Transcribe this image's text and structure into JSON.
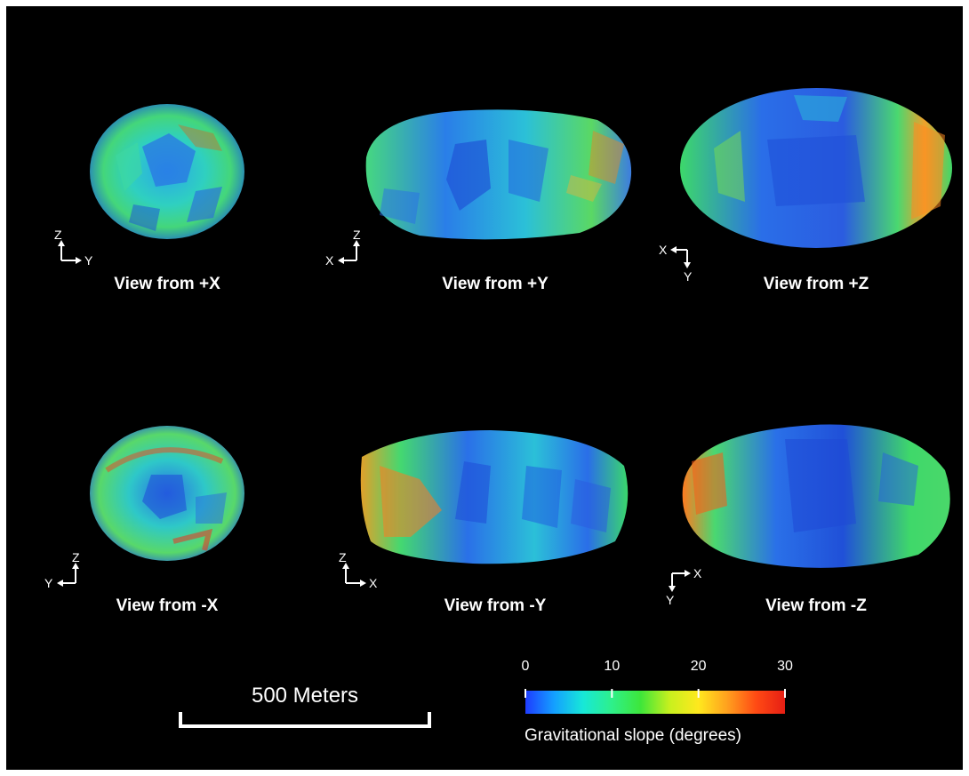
{
  "views": [
    {
      "label": "View from +X",
      "axes": [
        "Z",
        "Y"
      ]
    },
    {
      "label": "View from +Y",
      "axes": [
        "Z",
        "X"
      ]
    },
    {
      "label": "View from +Z",
      "axes": [
        "X",
        "Y"
      ]
    },
    {
      "label": "View from -X",
      "axes": [
        "Z",
        "Y"
      ]
    },
    {
      "label": "View from -Y",
      "axes": [
        "Z",
        "X"
      ]
    },
    {
      "label": "View from -Z",
      "axes": [
        "X",
        "Y"
      ]
    }
  ],
  "scale_bar": {
    "label": "500 Meters",
    "length_m": 500
  },
  "colorbar": {
    "title": "Gravitational slope (degrees)",
    "ticks": [
      "0",
      "10",
      "20",
      "30"
    ],
    "min": 0,
    "max": 30,
    "colors": [
      "#1e3cff",
      "#14a0ff",
      "#17e8d8",
      "#2ef08a",
      "#3ee63a",
      "#c8f01e",
      "#ffe81e",
      "#ffa01e",
      "#ff4a14",
      "#e61e14"
    ]
  },
  "colors": {
    "background": "#000000",
    "text": "#ffffff"
  }
}
